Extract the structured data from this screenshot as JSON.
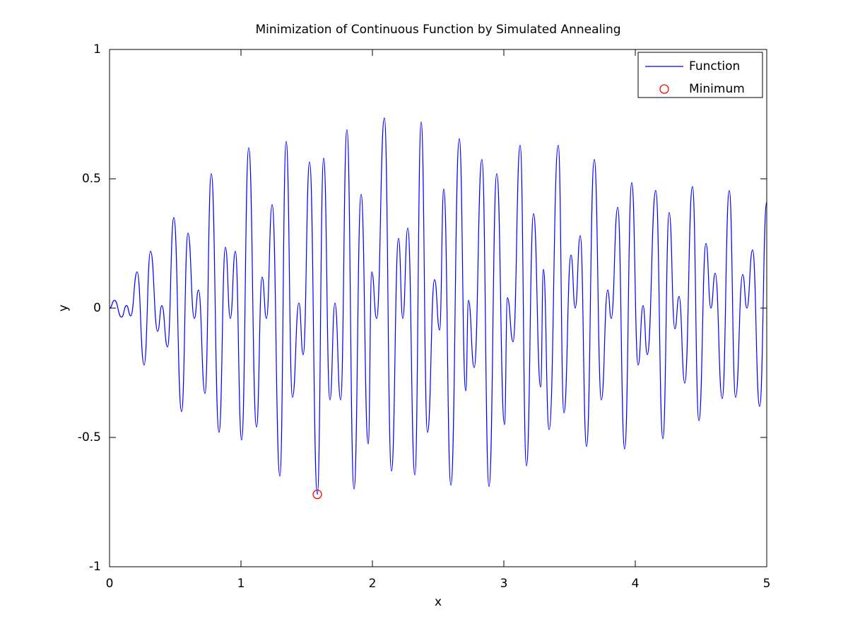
{
  "chart_data": {
    "type": "line",
    "title": "Minimization of Continuous Function by Simulated Annealing",
    "x_label": "x",
    "y_label": "y",
    "xlim": [
      0,
      5
    ],
    "ylim": [
      -1,
      1
    ],
    "xticks": [
      0,
      1,
      2,
      3,
      4,
      5
    ],
    "yticks": [
      -1,
      -0.5,
      0,
      0.5,
      1
    ],
    "legend_position": "upper right",
    "series": [
      {
        "name": "Function",
        "color": "#0000ff",
        "x": [
          0,
          0.038,
          0.091,
          0.129,
          0.161,
          0.21,
          0.263,
          0.312,
          0.366,
          0.398,
          0.441,
          0.489,
          0.548,
          0.597,
          0.645,
          0.677,
          0.726,
          0.774,
          0.833,
          0.882,
          0.919,
          0.957,
          1.005,
          1.059,
          1.118,
          1.161,
          1.194,
          1.237,
          1.296,
          1.344,
          1.392,
          1.441,
          1.473,
          1.522,
          1.581,
          1.629,
          1.677,
          1.715,
          1.758,
          1.806,
          1.86,
          1.914,
          1.968,
          1.995,
          2.032,
          2.091,
          2.145,
          2.199,
          2.231,
          2.269,
          2.323,
          2.371,
          2.419,
          2.473,
          2.511,
          2.543,
          2.597,
          2.661,
          2.71,
          2.731,
          2.774,
          2.833,
          2.887,
          2.946,
          3.005,
          3.027,
          3.07,
          3.124,
          3.172,
          3.226,
          3.28,
          3.301,
          3.344,
          3.414,
          3.457,
          3.511,
          3.543,
          3.581,
          3.629,
          3.688,
          3.742,
          3.79,
          3.817,
          3.866,
          3.919,
          3.973,
          4.022,
          4.059,
          4.091,
          4.156,
          4.21,
          4.258,
          4.301,
          4.333,
          4.376,
          4.435,
          4.484,
          4.538,
          4.575,
          4.608,
          4.661,
          4.715,
          4.763,
          4.817,
          4.849,
          4.892,
          4.946,
          5.0
        ],
        "values": [
          0,
          0.03,
          -0.035,
          0.01,
          -0.03,
          0.14,
          -0.22,
          0.22,
          -0.09,
          0.01,
          -0.15,
          0.35,
          -0.4,
          0.29,
          -0.04,
          0.07,
          -0.33,
          0.52,
          -0.48,
          0.235,
          -0.04,
          0.22,
          -0.51,
          0.62,
          -0.46,
          0.12,
          -0.04,
          0.4,
          -0.65,
          0.645,
          -0.345,
          0.02,
          -0.18,
          0.565,
          -0.72,
          0.58,
          -0.355,
          0.02,
          -0.355,
          0.69,
          -0.7,
          0.44,
          -0.525,
          0.14,
          -0.04,
          0.735,
          -0.63,
          0.27,
          -0.04,
          0.31,
          -0.645,
          0.72,
          -0.48,
          0.11,
          -0.085,
          0.46,
          -0.685,
          0.655,
          -0.32,
          0.03,
          -0.23,
          0.575,
          -0.69,
          0.52,
          -0.45,
          0.04,
          -0.13,
          0.63,
          -0.61,
          0.365,
          -0.305,
          0.15,
          -0.47,
          0.63,
          -0.405,
          0.205,
          0.0,
          0.28,
          -0.535,
          0.575,
          -0.355,
          0.07,
          -0.04,
          0.39,
          -0.545,
          0.485,
          -0.22,
          0.01,
          -0.18,
          0.455,
          -0.505,
          0.37,
          -0.08,
          0.045,
          -0.29,
          0.47,
          -0.435,
          0.25,
          0.0,
          0.135,
          -0.35,
          0.455,
          -0.345,
          0.13,
          0.0,
          0.225,
          -0.38,
          0.41
        ]
      },
      {
        "name": "Minimum",
        "color": "#ff0000",
        "marker": "circle",
        "x": [
          1.581
        ],
        "values": [
          -0.72
        ]
      }
    ]
  }
}
